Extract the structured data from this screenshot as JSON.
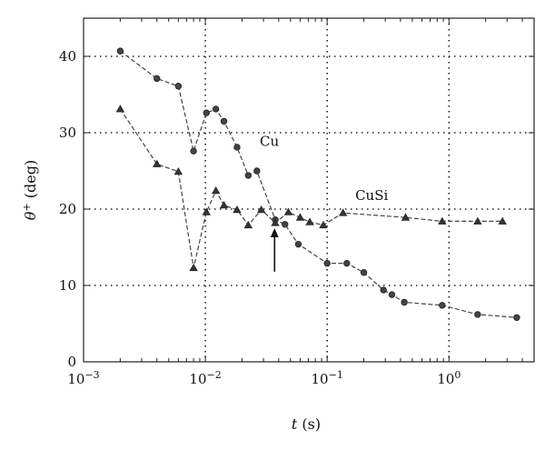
{
  "chart_data": {
    "type": "line",
    "xlabel_var": "t",
    "xlabel_unit": "(s)",
    "ylabel_var": "θ",
    "ylabel_sup": "+",
    "ylabel_unit": "(deg)",
    "x_scale": "log",
    "xlim": [
      0.001,
      5
    ],
    "ylim": [
      0,
      45
    ],
    "grid": true,
    "x_ticks": [
      {
        "value": 0.001,
        "base": "10",
        "exp": "−3"
      },
      {
        "value": 0.01,
        "base": "10",
        "exp": "−2"
      },
      {
        "value": 0.1,
        "base": "10",
        "exp": "−1"
      },
      {
        "value": 1,
        "base": "10",
        "exp": "0"
      }
    ],
    "y_ticks": [
      {
        "value": 0,
        "label": "0"
      },
      {
        "value": 10,
        "label": "10"
      },
      {
        "value": 20,
        "label": "20"
      },
      {
        "value": 30,
        "label": "30"
      },
      {
        "value": 40,
        "label": "40"
      }
    ],
    "grid_x": [
      0.01,
      0.1,
      1
    ],
    "grid_y": [
      10,
      20,
      30,
      40
    ],
    "series": [
      {
        "name": "Cu",
        "marker": "circle",
        "label_at": {
          "x": 0.028,
          "y": 28.3
        },
        "points": [
          [
            0.002,
            40.7
          ],
          [
            0.004,
            37.1
          ],
          [
            0.006,
            36.1
          ],
          [
            0.008,
            27.6
          ],
          [
            0.0102,
            32.6
          ],
          [
            0.0122,
            33.1
          ],
          [
            0.0142,
            31.5
          ],
          [
            0.0182,
            28.1
          ],
          [
            0.0225,
            24.4
          ],
          [
            0.0265,
            25.0
          ],
          [
            0.0375,
            18.6
          ],
          [
            0.045,
            18.0
          ],
          [
            0.058,
            15.4
          ],
          [
            0.1,
            12.9
          ],
          [
            0.145,
            12.9
          ],
          [
            0.2,
            11.7
          ],
          [
            0.29,
            9.4
          ],
          [
            0.34,
            8.8
          ],
          [
            0.43,
            7.8
          ],
          [
            0.88,
            7.4
          ],
          [
            1.72,
            6.2
          ],
          [
            3.6,
            5.8
          ]
        ]
      },
      {
        "name": "CuSi",
        "marker": "triangle",
        "label_at": {
          "x": 0.17,
          "y": 21.2
        },
        "points": [
          [
            0.002,
            33.1
          ],
          [
            0.004,
            25.9
          ],
          [
            0.006,
            24.9
          ],
          [
            0.008,
            12.3
          ],
          [
            0.0102,
            19.6
          ],
          [
            0.0122,
            22.4
          ],
          [
            0.0142,
            20.5
          ],
          [
            0.0182,
            19.9
          ],
          [
            0.0225,
            17.9
          ],
          [
            0.0288,
            19.9
          ],
          [
            0.0375,
            18.2
          ],
          [
            0.048,
            19.6
          ],
          [
            0.06,
            18.9
          ],
          [
            0.072,
            18.3
          ],
          [
            0.093,
            17.9
          ],
          [
            0.135,
            19.5
          ],
          [
            0.44,
            18.9
          ],
          [
            0.88,
            18.4
          ],
          [
            1.72,
            18.4
          ],
          [
            2.75,
            18.4
          ]
        ]
      }
    ],
    "annotation": {
      "type": "arrow",
      "x": 0.037,
      "y_from": 11.8,
      "y_to": 17.5
    }
  }
}
